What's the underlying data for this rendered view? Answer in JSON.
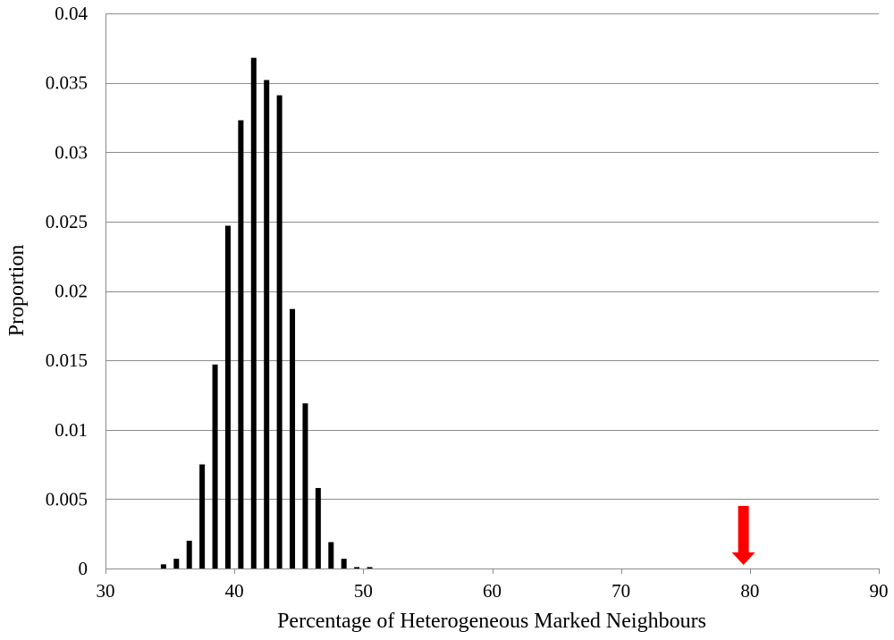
{
  "chart_data": {
    "type": "bar",
    "title": "",
    "xlabel": "Percentage of Heterogeneous Marked Neighbours",
    "ylabel": "Proportion",
    "xlim": [
      30,
      90
    ],
    "ylim": [
      0,
      0.04
    ],
    "xticks": [
      30,
      40,
      50,
      60,
      70,
      80,
      90
    ],
    "xtick_labels": [
      "30",
      "40",
      "50",
      "60",
      "70",
      "80",
      "90"
    ],
    "yticks": [
      0,
      0.005,
      0.01,
      0.015,
      0.02,
      0.025,
      0.03,
      0.035,
      0.04
    ],
    "ytick_labels": [
      "0",
      "0.005",
      "0.01",
      "0.015",
      "0.02",
      "0.025",
      "0.03",
      "0.035",
      "0.04"
    ],
    "grid": "horizontal",
    "legend": "none",
    "bar_color": "#000000",
    "x": [
      34.5,
      35.5,
      36.5,
      37.5,
      38.5,
      39.5,
      40.5,
      41.5,
      42.5,
      43.5,
      44.5,
      45.5,
      46.5,
      47.5,
      48.5,
      49.5,
      50.5
    ],
    "values": [
      0.0003,
      0.0007,
      0.002,
      0.0075,
      0.0147,
      0.0247,
      0.0323,
      0.0368,
      0.0352,
      0.0341,
      0.0187,
      0.0119,
      0.0058,
      0.0019,
      0.0007,
      0.0001,
      0.0001
    ],
    "annotation": {
      "type": "arrow",
      "x": 79.5,
      "color": "#ff0000"
    }
  }
}
